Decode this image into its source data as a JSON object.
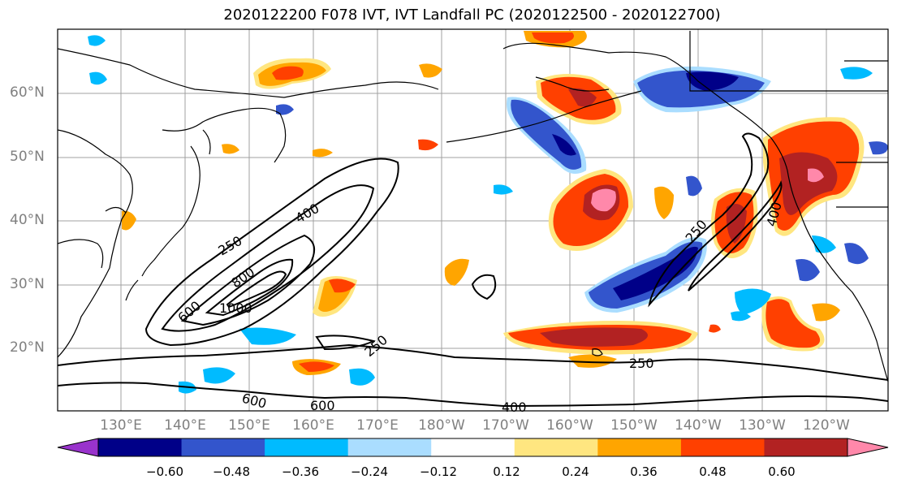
{
  "title": "2020122200 F078 IVT, IVT Landfall PC (2020122500 - 2020122700)",
  "lat_labels": [
    "60°N",
    "50°N",
    "40°N",
    "30°N",
    "20°N"
  ],
  "lon_labels": [
    "130°E",
    "140°E",
    "150°E",
    "160°E",
    "170°E",
    "180°W",
    "170°W",
    "160°W",
    "150°W",
    "140°W",
    "130°W",
    "120°W"
  ],
  "contour_labels": {
    "c1000": "1000",
    "c800": "800",
    "c600a": "600",
    "c400a": "400",
    "c250a": "250",
    "c250b": "250",
    "c250c": "250",
    "c600b": "600",
    "c600c": "600",
    "c400b": "400",
    "c250d": "250",
    "c400c": "400"
  },
  "colorbar": {
    "colors": [
      "#9933cc",
      "#000088",
      "#3355cc",
      "#00bbff",
      "#aaddff",
      "#ffffff",
      "#ffe680",
      "#ffa500",
      "#ff4000",
      "#b22222",
      "#ff88aa"
    ],
    "ticks": [
      "−0.60",
      "−0.48",
      "−0.36",
      "−0.24",
      "−0.12",
      "0.12",
      "0.24",
      "0.36",
      "0.48",
      "0.60"
    ]
  }
}
